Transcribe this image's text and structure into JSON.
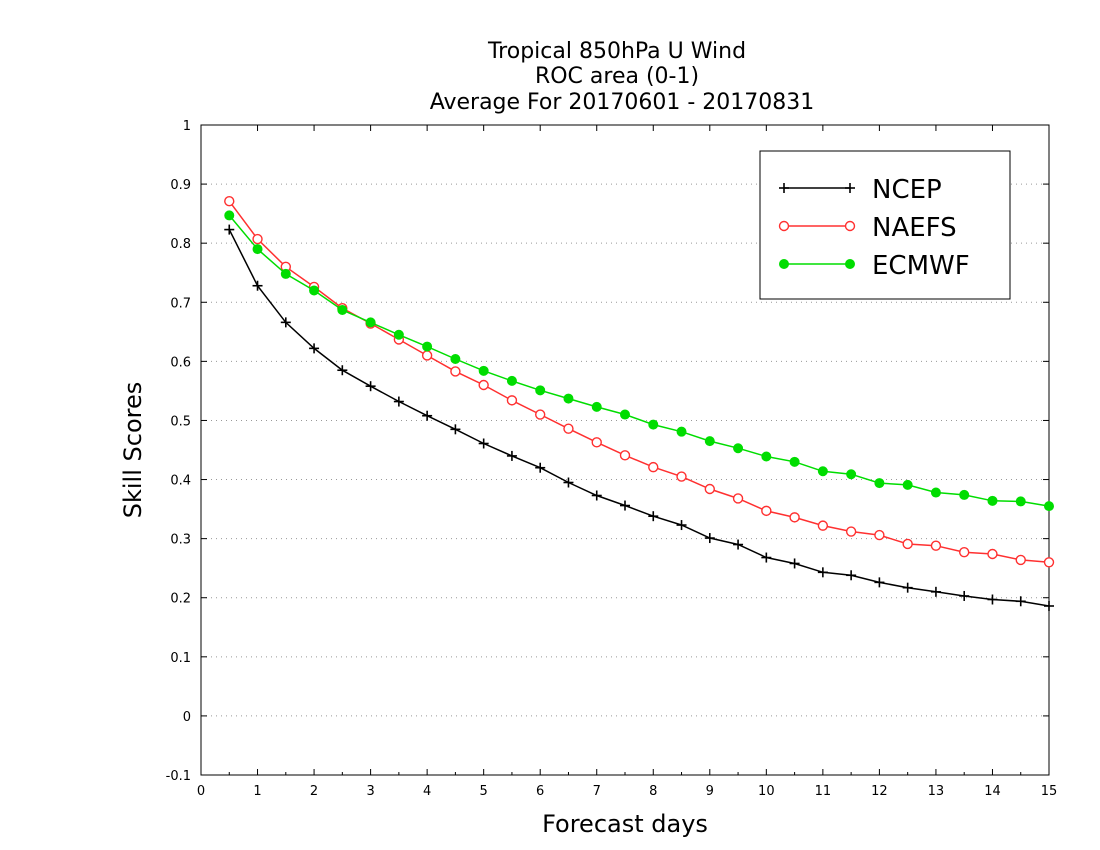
{
  "chart_data": {
    "type": "line",
    "title": [
      "Tropical 850hPa U Wind",
      "ROC area (0-1)",
      "Average For 20170601 - 20170831"
    ],
    "xlabel": "Forecast days",
    "ylabel": "Skill Scores",
    "xlim": [
      0,
      15
    ],
    "ylim": [
      -0.1,
      1
    ],
    "xticks": [
      0,
      1,
      2,
      3,
      4,
      5,
      6,
      7,
      8,
      9,
      10,
      11,
      12,
      13,
      14,
      15
    ],
    "yticks": [
      -0.1,
      0,
      0.1,
      0.2,
      0.3,
      0.4,
      0.5,
      0.6,
      0.7,
      0.8,
      0.9,
      1
    ],
    "ytick_labels": [
      "-0.1",
      "0",
      "0.1",
      "0.2",
      "0.3",
      "0.4",
      "0.5",
      "0.6",
      "0.7",
      "0.8",
      "0.9",
      "1"
    ],
    "grid": "horizontal-dotted",
    "legend_position": "top-right",
    "x": [
      0.5,
      1,
      1.5,
      2,
      2.5,
      3,
      3.5,
      4,
      4.5,
      5,
      5.5,
      6,
      6.5,
      7,
      7.5,
      8,
      8.5,
      9,
      9.5,
      10,
      10.5,
      11,
      11.5,
      12,
      12.5,
      13,
      13.5,
      14,
      14.5,
      15
    ],
    "series": [
      {
        "name": "NCEP",
        "color": "#000000",
        "marker": "plus",
        "values": [
          0.823,
          0.728,
          0.666,
          0.622,
          0.585,
          0.558,
          0.532,
          0.508,
          0.485,
          0.461,
          0.44,
          0.42,
          0.395,
          0.373,
          0.356,
          0.338,
          0.323,
          0.301,
          0.29,
          0.268,
          0.258,
          0.243,
          0.238,
          0.226,
          0.217,
          0.21,
          0.203,
          0.197,
          0.194,
          0.186
        ]
      },
      {
        "name": "NAEFS",
        "color": "#ff3030",
        "marker": "open-circle",
        "values": [
          0.871,
          0.807,
          0.76,
          0.726,
          0.69,
          0.664,
          0.637,
          0.61,
          0.583,
          0.56,
          0.534,
          0.51,
          0.486,
          0.463,
          0.441,
          0.421,
          0.405,
          0.384,
          0.368,
          0.347,
          0.336,
          0.322,
          0.312,
          0.306,
          0.291,
          0.288,
          0.277,
          0.274,
          0.264,
          0.26
        ]
      },
      {
        "name": "ECMWF",
        "color": "#00dd00",
        "marker": "filled-circle",
        "values": [
          0.847,
          0.79,
          0.748,
          0.72,
          0.687,
          0.666,
          0.645,
          0.625,
          0.604,
          0.584,
          0.567,
          0.551,
          0.537,
          0.523,
          0.51,
          0.493,
          0.481,
          0.465,
          0.453,
          0.439,
          0.43,
          0.414,
          0.409,
          0.394,
          0.391,
          0.378,
          0.374,
          0.364,
          0.363,
          0.355
        ]
      }
    ]
  }
}
